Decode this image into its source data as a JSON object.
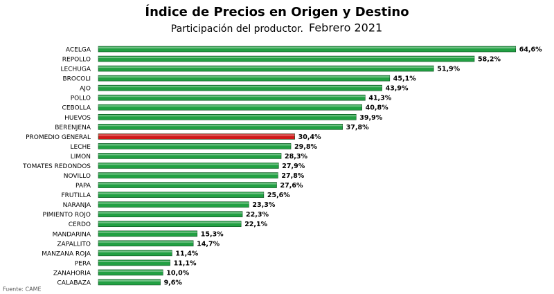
{
  "chart_data": {
    "type": "barh",
    "title": "Índice de Precios en Origen y Destino",
    "subtitle": "Participación del productor.",
    "subtitle_date": "Febrero 2021",
    "source": "Fuente: CAME",
    "categories": [
      "ACELGA",
      "REPOLLO",
      "LECHUGA",
      "BROCOLI",
      "AJO",
      "POLLO",
      "CEBOLLA",
      "HUEVOS",
      "BERENJENA",
      "PROMEDIO GENERAL",
      "LECHE",
      "LIMON",
      "TOMATES REDONDOS",
      "NOVILLO",
      "PAPA",
      "FRUTILLA",
      "NARANJA",
      "PIMIENTO ROJO",
      "CERDO",
      "MANDARINA",
      "ZAPALLITO",
      "MANZANA ROJA",
      "PERA",
      "ZANAHORIA",
      "CALABAZA"
    ],
    "values": [
      64.6,
      58.2,
      51.9,
      45.1,
      43.9,
      41.3,
      40.8,
      39.9,
      37.8,
      30.4,
      29.8,
      28.3,
      27.9,
      27.8,
      27.6,
      25.6,
      23.3,
      22.3,
      22.1,
      15.3,
      14.7,
      11.4,
      11.1,
      10.0,
      9.6
    ],
    "value_labels": [
      "64,6%",
      "58,2%",
      "51,9%",
      "45,1%",
      "43,9%",
      "41,3%",
      "40,8%",
      "39,9%",
      "37,8%",
      "30,4%",
      "29,8%",
      "28,3%",
      "27,9%",
      "27,8%",
      "27,6%",
      "25,6%",
      "23,3%",
      "22,3%",
      "22,1%",
      "15,3%",
      "14,7%",
      "11,4%",
      "11,1%",
      "10,0%",
      "9,6%"
    ],
    "colors": [
      "#22a043",
      "#22a043",
      "#22a043",
      "#22a043",
      "#22a043",
      "#22a043",
      "#22a043",
      "#22a043",
      "#22a043",
      "#d01818",
      "#22a043",
      "#22a043",
      "#22a043",
      "#22a043",
      "#22a043",
      "#22a043",
      "#22a043",
      "#22a043",
      "#22a043",
      "#22a043",
      "#22a043",
      "#22a043",
      "#22a043",
      "#22a043",
      "#22a043"
    ]
  }
}
